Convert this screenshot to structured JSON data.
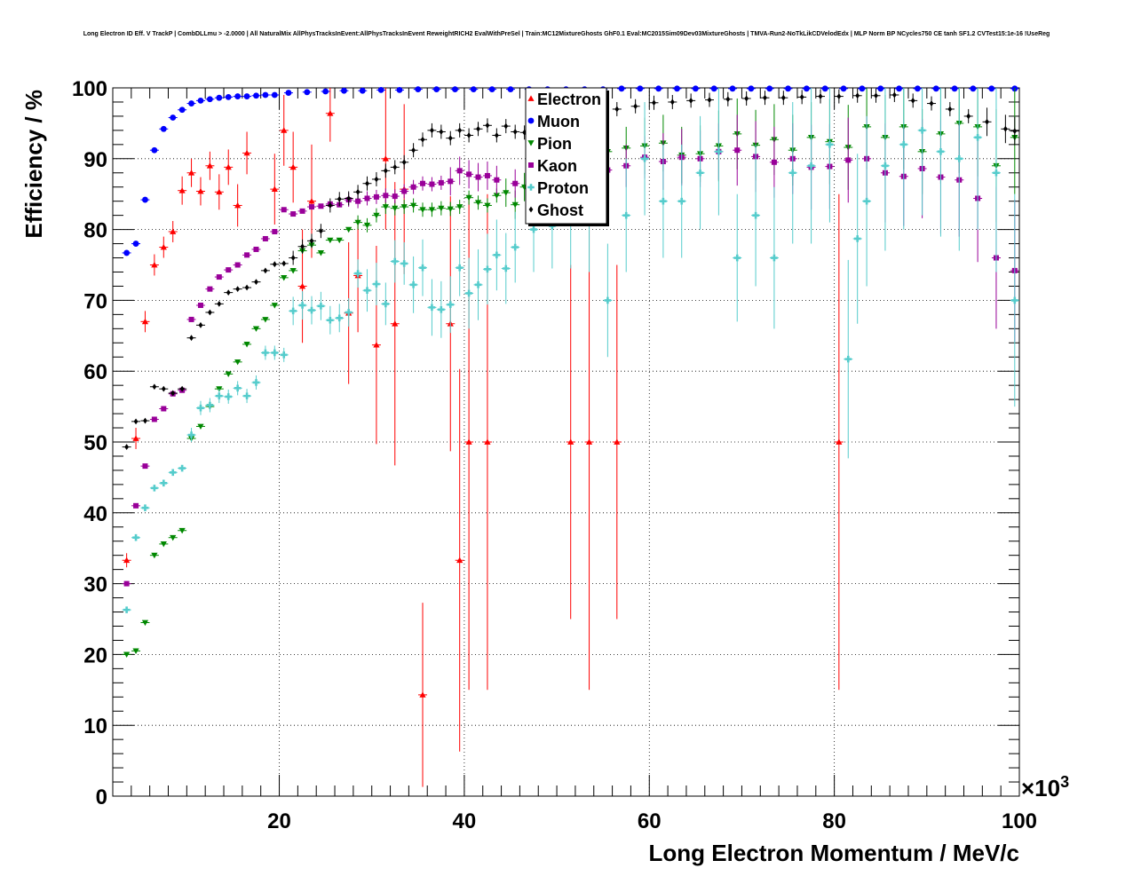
{
  "chart_data": {
    "type": "scatter",
    "title": "Long Electron ID Eff. V TrackP | CombDLLmu > -2.0000 | All NaturalMix AllPhysTracksInEvent:AllPhysTracksInEvent ReweightRICH2 EvalWithPreSel | Train:MC12MixtureGhosts GhF0.1 Eval:MC2015Sim09Dev03MixtureGhosts | TMVA-Run2-NoTkLikCDVelodEdx | MLP Norm BP NCycles750 CE tanh SF1.2 CVTest15:1e-16 !UseReg",
    "xlabel": "Long Electron Momentum / MeV/c",
    "ylabel": "Efficiency / %",
    "x_multiplier": "×10",
    "x_multiplier_exp": "3",
    "xlim": [
      2,
      100
    ],
    "ylim": [
      0,
      100
    ],
    "x_ticks": [
      20,
      40,
      60,
      80,
      100
    ],
    "x_tick_labels": [
      "20",
      "40",
      "60",
      "80",
      "100"
    ],
    "y_ticks": [
      0,
      10,
      20,
      30,
      40,
      50,
      60,
      70,
      80,
      90,
      100
    ],
    "y_tick_labels": [
      "0",
      "10",
      "20",
      "30",
      "40",
      "50",
      "60",
      "70",
      "80",
      "90",
      "100"
    ],
    "grid": true,
    "legend_position": "top-center",
    "series": [
      {
        "name": "Electron",
        "color": "#ff0000",
        "marker": "triangle-up",
        "x": [
          3.5,
          4.5,
          5.5,
          6.5,
          7.5,
          8.5,
          9.5,
          10.5,
          11.5,
          12.5,
          13.5,
          14.5,
          15.5,
          16.5,
          19.5,
          20.5,
          21.5,
          22.5,
          23.5,
          25.5,
          27.5,
          28.5,
          30.5,
          31.5,
          32.5,
          33.5,
          35.5,
          38.5,
          39.5,
          40.5,
          42.5,
          51.5,
          53.5,
          56.5,
          80.5
        ],
        "y": [
          33.3,
          50.5,
          67,
          75,
          77.5,
          79.7,
          85.5,
          88,
          85.4,
          89,
          85.3,
          88.8,
          83.4,
          90.8,
          85.7,
          94,
          88.8,
          72,
          84,
          96.4,
          68.2,
          73.5,
          63.7,
          90,
          66.7,
          85.7,
          14.3,
          66.7,
          33.3,
          50,
          50,
          50,
          50,
          50,
          50
        ],
        "err": [
          1,
          1.5,
          1.5,
          1.5,
          1.5,
          1.5,
          2,
          2,
          2,
          2,
          2.5,
          2.5,
          3,
          3,
          5,
          5,
          5,
          8,
          8,
          4,
          10,
          8,
          14,
          10,
          20,
          12,
          13,
          18,
          27,
          35,
          35,
          25,
          35,
          25,
          35
        ]
      },
      {
        "name": "Muon",
        "color": "#0000ff",
        "marker": "circle",
        "x": [
          3.5,
          4.5,
          5.5,
          6.5,
          7.5,
          8.5,
          9.5,
          10.5,
          11.5,
          12.5,
          13.5,
          14.5,
          15.5,
          16.5,
          17.5,
          18.5,
          19.5,
          21,
          23,
          25,
          27,
          29,
          31,
          33,
          35,
          37,
          39,
          41,
          43,
          45,
          47,
          49,
          51,
          53,
          55,
          57,
          59,
          61,
          63,
          65,
          67,
          69,
          71,
          73,
          75,
          77,
          79,
          81,
          83,
          85,
          87,
          89,
          91,
          93,
          95,
          97,
          99.5
        ],
        "y": [
          76.7,
          78,
          84.2,
          91.2,
          94.2,
          95.8,
          96.9,
          97.8,
          98.2,
          98.4,
          98.6,
          98.7,
          98.8,
          98.8,
          98.9,
          99,
          99,
          99.3,
          99.4,
          99.5,
          99.6,
          99.6,
          99.7,
          99.7,
          99.8,
          99.8,
          99.8,
          99.8,
          99.8,
          99.8,
          99.8,
          99.8,
          99.8,
          99.8,
          99.8,
          99.9,
          99.9,
          99.9,
          99.9,
          99.9,
          99.9,
          99.9,
          99.9,
          99.9,
          99.9,
          99.9,
          99.9,
          99.9,
          99.9,
          99.9,
          99.9,
          99.9,
          99.9,
          99.9,
          99.9,
          99.9,
          99.9
        ],
        "err": [
          0,
          0,
          0,
          0,
          0,
          0,
          0,
          0,
          0,
          0,
          0,
          0,
          0,
          0,
          0,
          0,
          0,
          0,
          0,
          0,
          0,
          0,
          0,
          0,
          0,
          0,
          0,
          0,
          0,
          0,
          0,
          0,
          0,
          0,
          0,
          0,
          0,
          0,
          0,
          0,
          0,
          0,
          0,
          0,
          0,
          0,
          0,
          0,
          0,
          0,
          0,
          0,
          0,
          0,
          0,
          0,
          0
        ]
      },
      {
        "name": "Pion",
        "color": "#008800",
        "marker": "triangle-down",
        "x": [
          3.5,
          4.5,
          5.5,
          6.5,
          7.5,
          8.5,
          9.5,
          10.5,
          11.5,
          12.5,
          13.5,
          14.5,
          15.5,
          16.5,
          17.5,
          18.5,
          19.5,
          20.5,
          21.5,
          22.5,
          23.5,
          24.5,
          25.5,
          26.5,
          27.5,
          28.5,
          29.5,
          30.5,
          31.5,
          32.5,
          33.5,
          34.5,
          35.5,
          36.5,
          37.5,
          38.5,
          39.5,
          40.5,
          41.5,
          42.5,
          43.5,
          44.5,
          45.5,
          46.5,
          47.5,
          48.5,
          49.5,
          50.5,
          52.5,
          55.5,
          57.5,
          59.5,
          61.5,
          63.5,
          65.5,
          67.5,
          69.5,
          71.5,
          73.5,
          75.5,
          77.5,
          79.5,
          81.5,
          83.5,
          85.5,
          87.5,
          89.5,
          91.5,
          93.5,
          95.5,
          97.5,
          99.5
        ],
        "y": [
          20,
          20.5,
          24.5,
          34,
          35.6,
          36.5,
          37.5,
          50.5,
          52.2,
          55,
          57.5,
          59.6,
          61.3,
          63.8,
          66,
          67.3,
          69.3,
          73.2,
          74.2,
          77,
          77.8,
          76.7,
          78.5,
          78.5,
          80,
          81,
          80.6,
          82,
          83.2,
          83,
          83.2,
          83.4,
          82.8,
          82.8,
          83,
          82.9,
          83.2,
          84.5,
          83.8,
          83.4,
          84.8,
          85.2,
          83.5,
          86,
          85.8,
          86.6,
          87.4,
          88,
          90,
          91,
          91.5,
          91.8,
          92.2,
          90.5,
          90.7,
          91.8,
          93.5,
          91.9,
          92.7,
          91.2,
          93,
          92.4,
          91.6,
          94.5,
          93,
          94.5,
          91,
          93.5,
          95,
          94.5,
          89,
          93
        ],
        "err": [
          0,
          0,
          0,
          0,
          0,
          0,
          0,
          0,
          0,
          0,
          0,
          0,
          0,
          0,
          0,
          0,
          0,
          0,
          0,
          0,
          0,
          0,
          0,
          0,
          0,
          1,
          1,
          1,
          1,
          1,
          1,
          1,
          1,
          1,
          1,
          1,
          1,
          1,
          1,
          1,
          1,
          2,
          2,
          2,
          2,
          2,
          2,
          2,
          3,
          3,
          3,
          4,
          4,
          4,
          4,
          5,
          5,
          5,
          5,
          5,
          5,
          6,
          6,
          6,
          6,
          6,
          6,
          7,
          7,
          7,
          8,
          8
        ]
      },
      {
        "name": "Kaon",
        "color": "#990099",
        "marker": "square",
        "x": [
          3.5,
          4.5,
          5.5,
          6.5,
          7.5,
          8.5,
          9.5,
          10.5,
          11.5,
          12.5,
          13.5,
          14.5,
          15.5,
          16.5,
          17.5,
          18.5,
          19.5,
          20.5,
          21.5,
          22.5,
          23.5,
          24.5,
          25.5,
          26.5,
          27.5,
          28.5,
          29.5,
          30.5,
          31.5,
          32.5,
          33.5,
          34.5,
          35.5,
          36.5,
          37.5,
          38.5,
          39.5,
          40.5,
          41.5,
          42.5,
          43.5,
          45.5,
          47.5,
          49.5,
          51.5,
          53.5,
          55.5,
          57.5,
          59.5,
          61.5,
          63.5,
          65.5,
          67.5,
          69.5,
          71.5,
          73.5,
          75.5,
          77.5,
          79.5,
          81.5,
          83.5,
          85.5,
          87.5,
          89.5,
          91.5,
          93.5,
          95.5,
          97.5,
          99.5
        ],
        "y": [
          30,
          41,
          46.6,
          53.2,
          54.7,
          56.8,
          57.3,
          67.3,
          69.3,
          71.6,
          73.3,
          74.3,
          75,
          76.4,
          77.2,
          78.7,
          79.7,
          82.8,
          82.2,
          82.6,
          83.2,
          83.3,
          83.6,
          83.5,
          84.2,
          84,
          84.4,
          84.6,
          84.8,
          84.7,
          85.4,
          86,
          86.5,
          86.4,
          86.6,
          86.8,
          88.3,
          87.8,
          87.4,
          87.6,
          87,
          86.5,
          87.5,
          86.8,
          87.2,
          88,
          88.4,
          89,
          90.2,
          89.6,
          90.2,
          90,
          91,
          91.2,
          90.3,
          89.5,
          90,
          88.8,
          88.9,
          89.8,
          90,
          88,
          87.5,
          88.6,
          87.4,
          87,
          84.4,
          76,
          74.2
        ],
        "err": [
          0,
          0,
          0,
          0,
          0,
          0,
          0,
          0,
          0,
          0,
          0,
          0,
          0,
          0,
          0,
          0,
          0,
          0,
          0,
          0,
          0,
          0,
          0,
          0,
          1,
          1,
          1,
          1,
          1,
          1,
          1,
          1,
          1,
          1,
          1,
          2,
          2,
          2,
          2,
          2,
          2,
          2,
          2,
          3,
          3,
          3,
          3,
          3,
          3,
          4,
          4,
          4,
          4,
          5,
          5,
          5,
          5,
          6,
          6,
          6,
          6,
          7,
          7,
          7,
          8,
          8,
          9,
          10,
          10
        ]
      },
      {
        "name": "Proton",
        "color": "#55cccc",
        "marker": "cross",
        "x": [
          3.5,
          4.5,
          5.5,
          6.5,
          7.5,
          8.5,
          9.5,
          10.5,
          11.5,
          12.5,
          13.5,
          14.5,
          15.5,
          16.5,
          17.5,
          18.5,
          19.5,
          20.5,
          21.5,
          22.5,
          23.5,
          24.5,
          25.5,
          26.5,
          27.5,
          28.5,
          29.5,
          30.5,
          31.5,
          32.5,
          33.5,
          34.5,
          35.5,
          36.5,
          37.5,
          38.5,
          39.5,
          40.5,
          41.5,
          42.5,
          43.5,
          44.5,
          45.5,
          47.5,
          49.5,
          51.5,
          53.5,
          55.5,
          57.5,
          59.5,
          61.5,
          63.5,
          65.5,
          67.5,
          69.5,
          71.5,
          73.5,
          75.5,
          77.5,
          79.5,
          81.5,
          82.5,
          83.5,
          85.5,
          87.5,
          89.5,
          91.5,
          93.5,
          95.5,
          97.5,
          99.5
        ],
        "y": [
          26.3,
          36.5,
          40.7,
          43.5,
          44.2,
          45.7,
          46.3,
          51,
          54.8,
          55.2,
          56.5,
          56.4,
          57.6,
          56.5,
          58.4,
          62.6,
          62.6,
          62.3,
          68.5,
          69.3,
          68.6,
          69.2,
          67.2,
          67.5,
          68.3,
          73.8,
          71.4,
          72.3,
          69.5,
          75.5,
          75.2,
          72.2,
          74.6,
          69,
          68.7,
          69.4,
          74.6,
          71,
          72.2,
          74.4,
          76.4,
          74.5,
          77.5,
          80,
          80.5,
          81.5,
          81,
          70,
          82,
          90,
          84,
          84,
          88,
          91,
          76,
          82,
          76,
          88,
          89,
          92,
          61.7,
          78.7,
          84,
          89,
          92,
          94,
          91,
          90,
          93,
          88,
          70
        ],
        "err": [
          0,
          0,
          0,
          0,
          0,
          0,
          0,
          1,
          1,
          1,
          1,
          1,
          1,
          1,
          1,
          1,
          1,
          1,
          2,
          2,
          2,
          2,
          2,
          2,
          2,
          2,
          3,
          3,
          3,
          3,
          3,
          4,
          4,
          4,
          4,
          4,
          4,
          5,
          5,
          5,
          5,
          5,
          5,
          6,
          6,
          7,
          7,
          8,
          8,
          8,
          8,
          8,
          8,
          9,
          9,
          10,
          10,
          10,
          11,
          11,
          14,
          12,
          12,
          12,
          12,
          12,
          12,
          13,
          13,
          14,
          15
        ]
      },
      {
        "name": "Ghost",
        "color": "#000000",
        "marker": "diamond",
        "x": [
          3.5,
          4.5,
          5.5,
          6.5,
          7.5,
          8.5,
          9.5,
          10.5,
          11.5,
          12.5,
          13.5,
          14.5,
          15.5,
          16.5,
          17.5,
          18.5,
          19.5,
          20.5,
          21.5,
          22.5,
          23.5,
          24.5,
          25.5,
          26.5,
          27.5,
          28.5,
          29.5,
          30.5,
          31.5,
          32.5,
          33.5,
          34.5,
          35.5,
          36.5,
          37.5,
          38.5,
          39.5,
          40.5,
          41.5,
          42.5,
          43.5,
          44.5,
          45.5,
          46.5,
          48.5,
          50.5,
          52.5,
          54.5,
          56.5,
          58.5,
          60.5,
          62.5,
          64.5,
          66.5,
          68.5,
          70.5,
          72.5,
          74.5,
          76.5,
          78.5,
          80.5,
          82.5,
          84.5,
          86.5,
          88.5,
          90.5,
          92.5,
          94.5,
          96.5,
          98.5,
          99.5
        ],
        "y": [
          49.3,
          52.9,
          53,
          57.8,
          57.5,
          56.9,
          57.5,
          64.7,
          66.5,
          68.3,
          69.5,
          71.1,
          71.6,
          71.8,
          72.6,
          74.2,
          75.1,
          75.2,
          76,
          77.6,
          78.4,
          79.8,
          83.4,
          84.3,
          84.4,
          85.3,
          86.5,
          87.1,
          88.3,
          88.8,
          89.5,
          91.2,
          92.7,
          94,
          93.8,
          92.9,
          94,
          93.3,
          94.2,
          94.7,
          93.3,
          94.6,
          93.8,
          93.7,
          95.1,
          95.8,
          96.2,
          96.7,
          97,
          97.4,
          97.9,
          98,
          98.2,
          98.3,
          98.4,
          98.5,
          98.6,
          98.6,
          98.7,
          98.8,
          98.8,
          98.9,
          98.9,
          99,
          98.2,
          97.8,
          97,
          96,
          95.2,
          94.2,
          93.9
        ],
        "err": [
          0,
          0,
          0,
          0,
          0,
          0,
          0,
          0,
          0,
          0,
          0,
          0,
          0,
          0,
          0,
          0,
          0,
          0,
          1,
          1,
          1,
          1,
          1,
          1,
          1,
          1,
          1,
          1,
          1,
          1,
          1,
          1,
          1,
          1,
          1,
          1,
          1,
          1,
          1,
          1,
          1,
          1,
          1,
          1,
          1,
          1,
          1,
          1,
          1,
          1,
          1,
          1,
          1,
          1,
          1,
          1,
          1,
          1,
          1,
          1,
          1,
          1,
          1,
          1,
          1,
          1,
          1,
          1,
          2,
          2,
          2
        ]
      }
    ]
  }
}
